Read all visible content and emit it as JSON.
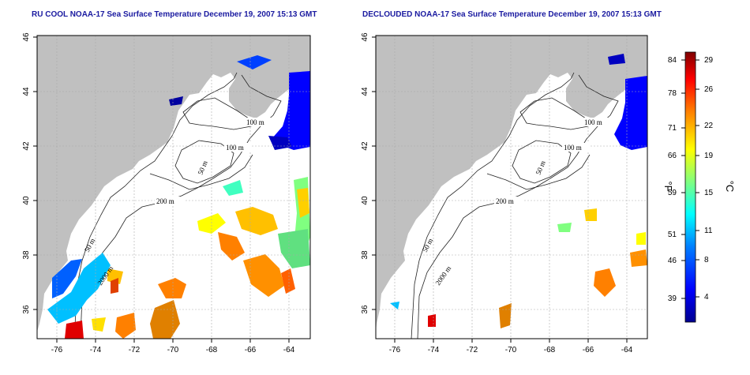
{
  "panels": [
    {
      "title": "RU COOL NOAA-17 Sea Surface Temperature December 19, 2007 15:13 GMT",
      "contour_labels": [
        "100 m",
        "100 m",
        "50 m",
        "200 m",
        "50 m",
        "2000 m"
      ]
    },
    {
      "title": "DECLOUDED NOAA-17 Sea Surface Temperature December 19, 2007 15:13 GMT",
      "contour_labels": [
        "100 m",
        "100 m",
        "50 m",
        "200 m",
        "50 m",
        "2000 m"
      ]
    }
  ],
  "axes": {
    "lon_ticks": [
      "-76",
      "-74",
      "-72",
      "-70",
      "-68",
      "-66",
      "-64"
    ],
    "lat_ticks": [
      "36",
      "38",
      "40",
      "42",
      "44",
      "46"
    ]
  },
  "colorbar": {
    "f_label": "°F",
    "c_label": "°C",
    "f_ticks": [
      "84",
      "78",
      "71",
      "66",
      "59",
      "51",
      "46",
      "39"
    ],
    "c_ticks": [
      "29",
      "26",
      "22",
      "19",
      "15",
      "11",
      "8",
      "4"
    ]
  },
  "colors": {
    "land": "#c0c0c0",
    "title": "#1a1aa0",
    "colormap": [
      "#00008f",
      "#0000ff",
      "#0080ff",
      "#00ffff",
      "#80ff80",
      "#ffff00",
      "#ff8000",
      "#ff0000",
      "#800000"
    ]
  }
}
